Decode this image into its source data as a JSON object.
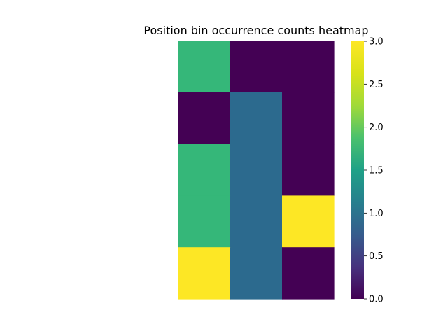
{
  "chart_data": {
    "type": "heatmap",
    "title": "Position bin occurrence counts heatmap",
    "xlabel": "",
    "ylabel": "",
    "rows": 5,
    "cols": 3,
    "values": [
      [
        2,
        0,
        0
      ],
      [
        0,
        1,
        0
      ],
      [
        2,
        1,
        0
      ],
      [
        2,
        1,
        3
      ],
      [
        3,
        1,
        0
      ]
    ],
    "colormap": "viridis",
    "vmin": 0,
    "vmax": 3,
    "colorbar": {
      "ticks": [
        0.0,
        0.5,
        1.0,
        1.5,
        2.0,
        2.5,
        3.0
      ],
      "tick_labels": [
        "0.0",
        "0.5",
        "1.0",
        "1.5",
        "2.0",
        "2.5",
        "3.0"
      ]
    },
    "colors": {
      "0": "#440154",
      "1": "#2c6a8e",
      "2": "#35b779",
      "3": "#fde725"
    }
  }
}
